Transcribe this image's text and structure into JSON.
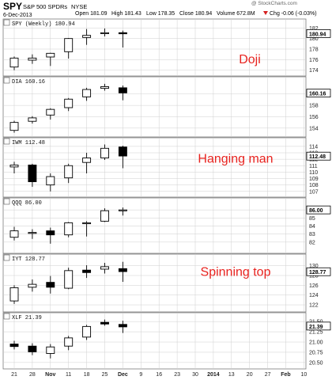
{
  "header": {
    "symbol": "SPY",
    "name": "S&P 500 SPDRs",
    "exchange": "NYSE",
    "date": "6-Dec-2013",
    "open": "Open 181.09",
    "high": "High 181.43",
    "low": "Low 178.35",
    "close": "Close 180.94",
    "volume": "Volume 672.8M",
    "chg": "Chg -0.06 (-0.03%)",
    "chg_icon": "down-arrow-icon",
    "watermark": "@ StockCharts.com"
  },
  "x_tick_labels": [
    "21",
    "28",
    "Nov",
    "11",
    "18",
    "25",
    "Dec",
    "9",
    "16",
    "23",
    "30",
    "2014",
    "13",
    "20",
    "27",
    "Feb",
    "10"
  ],
  "bold_ticks": [
    "Nov",
    "Dec",
    "2014",
    "Feb"
  ],
  "colors": {
    "up": "#ffffff",
    "down": "#000000",
    "grid": "#cfcfcf",
    "annotation": "#e8231f",
    "last_box": "#000000"
  },
  "chart_data": [
    {
      "type": "candlestick",
      "label": "SPY (Weekly) 180.94",
      "last": "180.94",
      "ylim": [
        173.5,
        182.8
      ],
      "yticks": [
        "182",
        "180",
        "178",
        "176",
        "174"
      ],
      "annotation": "Doji",
      "candles": [
        {
          "x": "21",
          "o": 174.6,
          "h": 176.6,
          "l": 174.0,
          "c": 176.3
        },
        {
          "x": "28",
          "o": 175.9,
          "h": 177.0,
          "l": 175.2,
          "c": 176.3
        },
        {
          "x": "Nov",
          "o": 176.5,
          "h": 177.3,
          "l": 174.8,
          "c": 177.2
        },
        {
          "x": "11",
          "o": 177.5,
          "h": 180.1,
          "l": 176.2,
          "c": 180.0
        },
        {
          "x": "18",
          "o": 180.2,
          "h": 181.8,
          "l": 178.8,
          "c": 180.6
        },
        {
          "x": "25",
          "o": 181.0,
          "h": 181.9,
          "l": 180.4,
          "c": 181.1
        },
        {
          "x": "Dec",
          "o": 181.1,
          "h": 181.5,
          "l": 178.3,
          "c": 180.9
        }
      ]
    },
    {
      "type": "candlestick",
      "label": "DIA 160.16",
      "last": "160.16",
      "ylim": [
        153.0,
        162.2
      ],
      "yticks": [
        "160",
        "158",
        "156",
        "154"
      ],
      "annotation": "",
      "candles": [
        {
          "x": "21",
          "o": 153.6,
          "h": 155.3,
          "l": 153.2,
          "c": 155.0
        },
        {
          "x": "28",
          "o": 155.2,
          "h": 156.1,
          "l": 154.8,
          "c": 155.8
        },
        {
          "x": "Nov",
          "o": 156.3,
          "h": 157.5,
          "l": 155.5,
          "c": 157.3
        },
        {
          "x": "11",
          "o": 157.6,
          "h": 159.3,
          "l": 157.0,
          "c": 159.1
        },
        {
          "x": "18",
          "o": 159.5,
          "h": 161.1,
          "l": 158.8,
          "c": 160.8
        },
        {
          "x": "25",
          "o": 161.0,
          "h": 161.8,
          "l": 160.6,
          "c": 161.3
        },
        {
          "x": "Dec",
          "o": 161.1,
          "h": 161.5,
          "l": 158.9,
          "c": 160.2
        }
      ]
    },
    {
      "type": "candlestick",
      "label": "IWM 112.48",
      "last": "112.48",
      "ylim": [
        106.6,
        114.6
      ],
      "yticks": [
        "114",
        "113",
        "112",
        "111",
        "110",
        "109",
        "108",
        "107"
      ],
      "annotation": "Hanging man",
      "candles": [
        {
          "x": "21",
          "o": 110.8,
          "h": 111.6,
          "l": 109.8,
          "c": 111.1
        },
        {
          "x": "28",
          "o": 111.1,
          "h": 111.3,
          "l": 107.7,
          "c": 108.5
        },
        {
          "x": "Nov",
          "o": 108.0,
          "h": 109.8,
          "l": 107.0,
          "c": 109.3
        },
        {
          "x": "11",
          "o": 109.1,
          "h": 111.3,
          "l": 108.3,
          "c": 111.0
        },
        {
          "x": "18",
          "o": 111.5,
          "h": 113.0,
          "l": 109.8,
          "c": 112.2
        },
        {
          "x": "25",
          "o": 112.2,
          "h": 114.3,
          "l": 111.9,
          "c": 113.7
        },
        {
          "x": "Dec",
          "o": 113.9,
          "h": 114.1,
          "l": 110.6,
          "c": 112.5
        }
      ]
    },
    {
      "type": "candlestick",
      "label": "QQQ 86.00",
      "last": "86.00",
      "ylim": [
        81.0,
        86.9
      ],
      "yticks": [
        "86.00",
        "85",
        "84",
        "83",
        "82"
      ],
      "annotation": "",
      "candles": [
        {
          "x": "21",
          "o": 82.6,
          "h": 83.9,
          "l": 82.2,
          "c": 83.4
        },
        {
          "x": "28",
          "o": 83.1,
          "h": 83.6,
          "l": 82.4,
          "c": 83.2
        },
        {
          "x": "Nov",
          "o": 83.4,
          "h": 83.8,
          "l": 81.8,
          "c": 82.9
        },
        {
          "x": "11",
          "o": 82.9,
          "h": 84.5,
          "l": 82.6,
          "c": 84.4
        },
        {
          "x": "18",
          "o": 84.4,
          "h": 84.6,
          "l": 82.7,
          "c": 84.4
        },
        {
          "x": "25",
          "o": 84.6,
          "h": 86.2,
          "l": 84.5,
          "c": 85.9
        },
        {
          "x": "Dec",
          "o": 85.9,
          "h": 86.3,
          "l": 85.3,
          "c": 86.0
        }
      ]
    },
    {
      "type": "candlestick",
      "label": "IYT 128.77",
      "last": "128.77",
      "ylim": [
        121.2,
        131.4
      ],
      "yticks": [
        "130",
        "128",
        "126",
        "124",
        "122"
      ],
      "annotation": "Spinning top",
      "candles": [
        {
          "x": "21",
          "o": 122.8,
          "h": 126.0,
          "l": 122.2,
          "c": 125.5
        },
        {
          "x": "28",
          "o": 125.6,
          "h": 127.2,
          "l": 124.7,
          "c": 126.2
        },
        {
          "x": "Nov",
          "o": 126.6,
          "h": 127.9,
          "l": 124.3,
          "c": 125.6
        },
        {
          "x": "11",
          "o": 125.4,
          "h": 129.6,
          "l": 125.2,
          "c": 129.0
        },
        {
          "x": "18",
          "o": 129.1,
          "h": 130.1,
          "l": 127.5,
          "c": 128.6
        },
        {
          "x": "25",
          "o": 129.3,
          "h": 130.6,
          "l": 128.4,
          "c": 129.8
        },
        {
          "x": "Dec",
          "o": 129.4,
          "h": 130.8,
          "l": 126.7,
          "c": 128.8
        }
      ]
    },
    {
      "type": "candlestick",
      "label": "XLF 21.39",
      "last": "21.39",
      "ylim": [
        20.42,
        21.6
      ],
      "yticks": [
        "21.50",
        "21.25",
        "21.00",
        "20.75",
        "20.50"
      ],
      "annotation": "",
      "candles": [
        {
          "x": "21",
          "o": 20.95,
          "h": 21.03,
          "l": 20.82,
          "c": 20.89
        },
        {
          "x": "28",
          "o": 20.9,
          "h": 20.97,
          "l": 20.68,
          "c": 20.76
        },
        {
          "x": "Nov",
          "o": 20.72,
          "h": 20.95,
          "l": 20.6,
          "c": 20.88
        },
        {
          "x": "11",
          "o": 20.9,
          "h": 21.15,
          "l": 20.8,
          "c": 21.1
        },
        {
          "x": "18",
          "o": 21.12,
          "h": 21.42,
          "l": 21.05,
          "c": 21.38
        },
        {
          "x": "25",
          "o": 21.48,
          "h": 21.55,
          "l": 21.4,
          "c": 21.44
        },
        {
          "x": "Dec",
          "o": 21.43,
          "h": 21.52,
          "l": 21.22,
          "c": 21.37
        }
      ]
    }
  ]
}
